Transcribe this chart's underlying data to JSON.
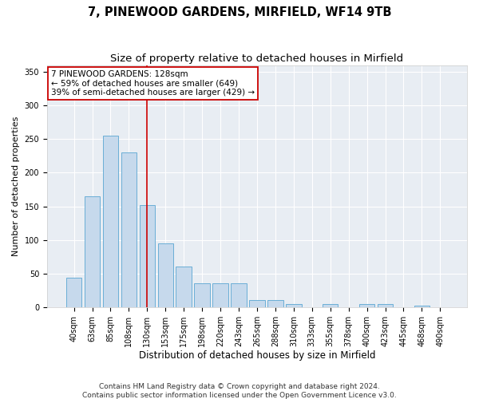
{
  "title1": "7, PINEWOOD GARDENS, MIRFIELD, WF14 9TB",
  "title2": "Size of property relative to detached houses in Mirfield",
  "xlabel": "Distribution of detached houses by size in Mirfield",
  "ylabel": "Number of detached properties",
  "categories": [
    "40sqm",
    "63sqm",
    "85sqm",
    "108sqm",
    "130sqm",
    "153sqm",
    "175sqm",
    "198sqm",
    "220sqm",
    "243sqm",
    "265sqm",
    "288sqm",
    "310sqm",
    "333sqm",
    "355sqm",
    "378sqm",
    "400sqm",
    "423sqm",
    "445sqm",
    "468sqm",
    "490sqm"
  ],
  "values": [
    44,
    165,
    255,
    230,
    152,
    95,
    60,
    35,
    35,
    35,
    10,
    10,
    5,
    0,
    4,
    0,
    4,
    5,
    0,
    2,
    0
  ],
  "bar_color": "#c6d9ec",
  "bar_edge_color": "#6aaed6",
  "vline_x_idx": 4,
  "vline_color": "#cc0000",
  "annotation_line1": "7 PINEWOOD GARDENS: 128sqm",
  "annotation_line2": "← 59% of detached houses are smaller (649)",
  "annotation_line3": "39% of semi-detached houses are larger (429) →",
  "annotation_box_color": "#ffffff",
  "annotation_box_edge_color": "#cc0000",
  "ylim": [
    0,
    360
  ],
  "yticks": [
    0,
    50,
    100,
    150,
    200,
    250,
    300,
    350
  ],
  "bg_color": "#e8edf3",
  "grid_color": "#ffffff",
  "footer1": "Contains HM Land Registry data © Crown copyright and database right 2024.",
  "footer2": "Contains public sector information licensed under the Open Government Licence v3.0.",
  "title1_fontsize": 10.5,
  "title2_fontsize": 9.5,
  "tick_fontsize": 7,
  "ylabel_fontsize": 8,
  "xlabel_fontsize": 8.5,
  "annotation_fontsize": 7.5,
  "footer_fontsize": 6.5
}
